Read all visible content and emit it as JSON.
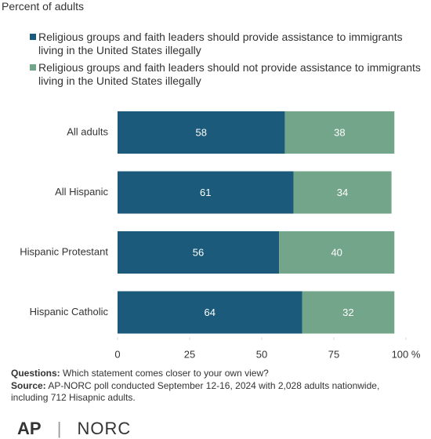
{
  "chart_data": {
    "type": "stacked-bar-horizontal",
    "subtitle": "Percent of adults",
    "categories": [
      "All adults",
      "All Hispanic",
      "Hispanic Protestant",
      "Hispanic Catholic"
    ],
    "series": [
      {
        "name": "Religious groups and faith leaders should provide assistance to immigrants living in the United States illegally",
        "color": "#1b5a7b",
        "values": [
          58,
          61,
          56,
          64
        ]
      },
      {
        "name": "Religious groups and faith leaders should not provide assistance to immigrants living in the United States illegally",
        "color": "#73a58a",
        "values": [
          38,
          34,
          40,
          32
        ]
      }
    ],
    "xlim": [
      0,
      100
    ],
    "xticks": [
      0,
      25,
      50,
      75,
      {
        "value": 100,
        "label": "100 %"
      }
    ],
    "notes": {
      "questions_label": "Questions:",
      "questions_text": "Which statement comes closer to your own view?",
      "source_label": "Source:",
      "source_text": "AP-NORC poll conducted September 12-16, 2024 with 2,028 adults nationwide, including 712 Hisapnic adults."
    },
    "logo": {
      "left": "AP",
      "right": "NORC"
    }
  }
}
